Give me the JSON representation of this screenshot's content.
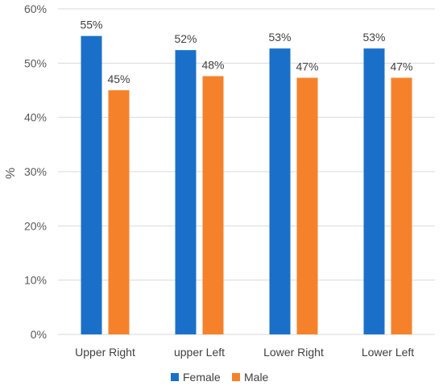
{
  "chart_data": {
    "type": "bar",
    "categories": [
      "Upper Right",
      "upper Left",
      "Lower Right",
      "Lower Left"
    ],
    "series": [
      {
        "name": "Female",
        "values": [
          55,
          52.4,
          52.7,
          52.7
        ],
        "labels": [
          "55%",
          "52%",
          "53%",
          "53%"
        ],
        "color": "#1a70c9"
      },
      {
        "name": "Male",
        "values": [
          45,
          47.6,
          47.3,
          47.3
        ],
        "labels": [
          "45%",
          "48%",
          "47%",
          "47%"
        ],
        "color": "#f5822a"
      }
    ],
    "ylabel": "%",
    "ylim": [
      0,
      60
    ],
    "yticks": [
      0,
      10,
      20,
      30,
      40,
      50,
      60
    ],
    "ytick_labels": [
      "0%",
      "10%",
      "20%",
      "30%",
      "40%",
      "50%",
      "60%"
    ],
    "grid": true,
    "legend_position": "bottom"
  }
}
